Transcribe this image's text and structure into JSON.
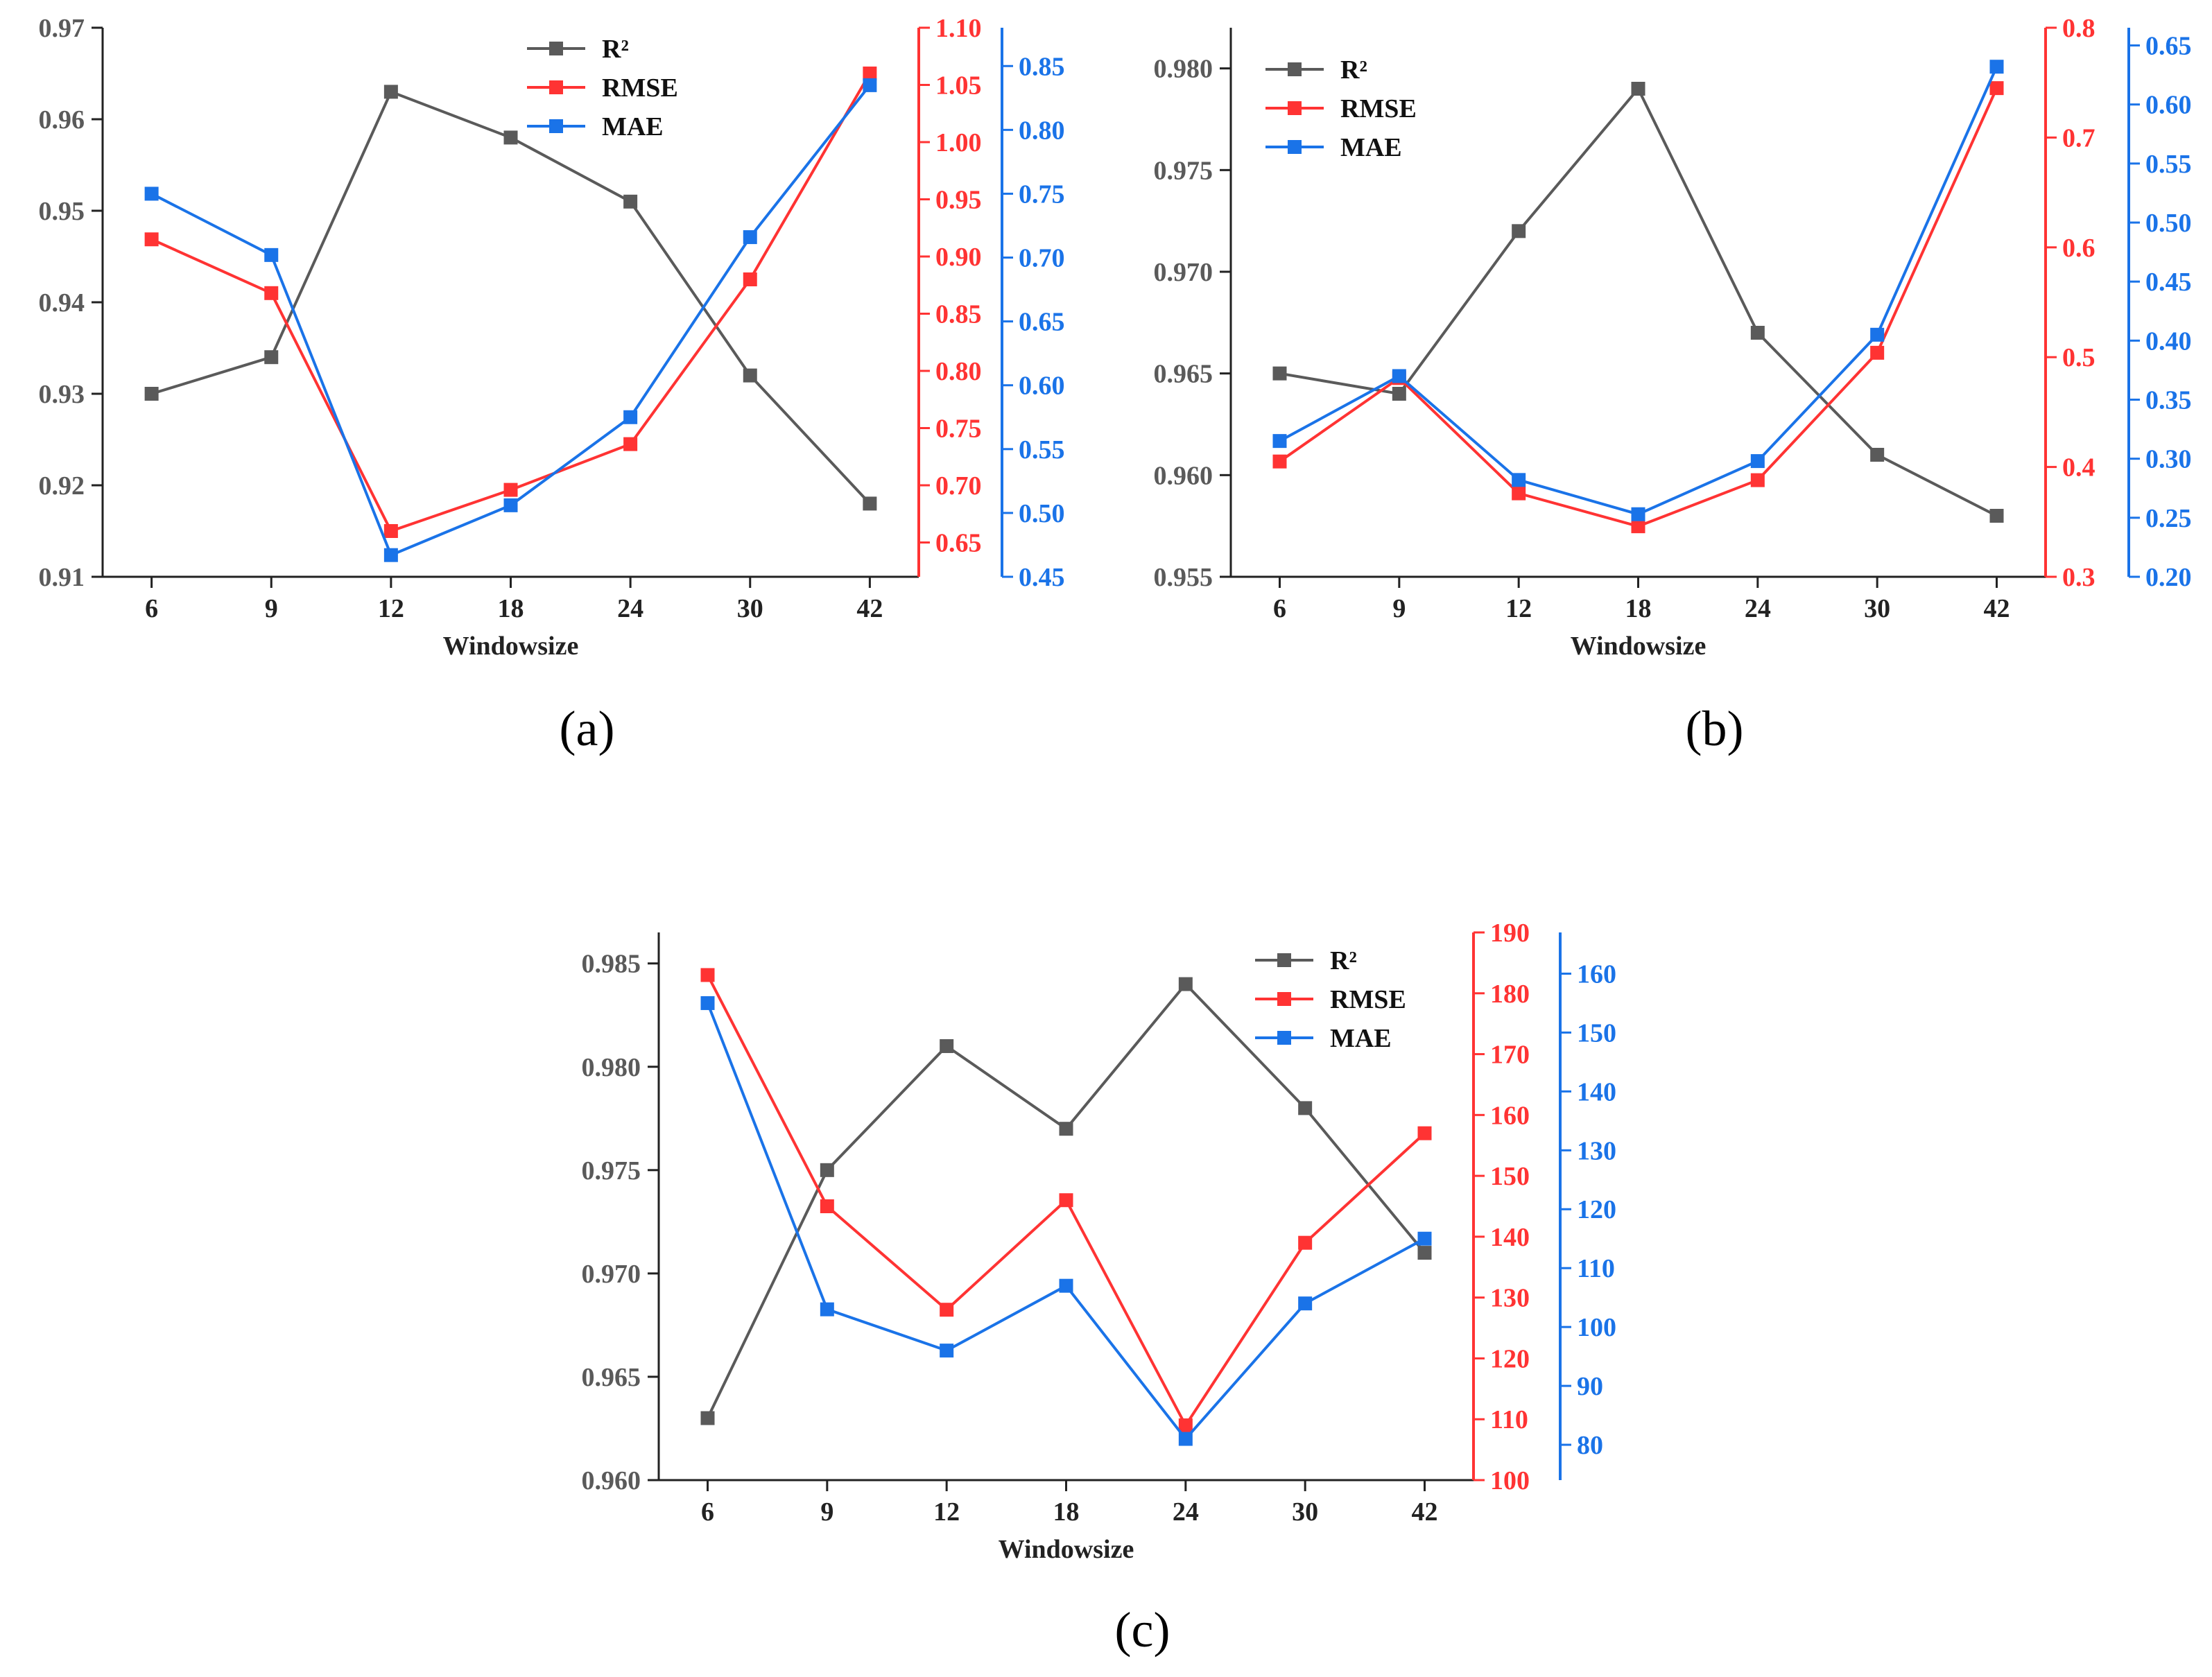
{
  "colors": {
    "r2": "#5a5a5a",
    "rmse": "#ff3333",
    "mae": "#1a73e8",
    "axis": "#222222"
  },
  "legend_labels": {
    "r2": "R²",
    "rmse": "RMSE",
    "mae": "MAE"
  },
  "chart_data": [
    {
      "type": "line",
      "panel_label": "(a)",
      "xlabel": "Windowsize",
      "categories": [
        "6",
        "9",
        "12",
        "18",
        "24",
        "30",
        "42"
      ],
      "series": [
        {
          "name": "R²",
          "axis": "left",
          "values": [
            0.93,
            0.934,
            0.963,
            0.958,
            0.951,
            0.932,
            0.918
          ]
        },
        {
          "name": "RMSE",
          "axis": "right1",
          "values": [
            0.915,
            0.868,
            0.66,
            0.696,
            0.736,
            0.88,
            1.06
          ]
        },
        {
          "name": "MAE",
          "axis": "right2",
          "values": [
            0.75,
            0.702,
            0.467,
            0.506,
            0.575,
            0.716,
            0.835
          ]
        }
      ],
      "axes": {
        "left": {
          "min": 0.91,
          "max": 0.97,
          "ticks": [
            "0.91",
            "0.92",
            "0.93",
            "0.94",
            "0.95",
            "0.96",
            "0.97"
          ]
        },
        "right1": {
          "min": 0.62,
          "max": 1.1,
          "ticks": [
            "0.65",
            "0.70",
            "0.75",
            "0.80",
            "0.85",
            "0.90",
            "0.95",
            "1.00",
            "1.05",
            "1.10"
          ]
        },
        "right2": {
          "min": 0.45,
          "max": 0.88,
          "ticks": [
            "0.45",
            "0.50",
            "0.55",
            "0.60",
            "0.65",
            "0.70",
            "0.75",
            "0.80",
            "0.85"
          ]
        }
      }
    },
    {
      "type": "line",
      "panel_label": "(b)",
      "xlabel": "Windowsize",
      "categories": [
        "6",
        "9",
        "12",
        "18",
        "24",
        "30",
        "42"
      ],
      "series": [
        {
          "name": "R²",
          "axis": "left",
          "values": [
            0.965,
            0.964,
            0.972,
            0.979,
            0.967,
            0.961,
            0.958
          ]
        },
        {
          "name": "RMSE",
          "axis": "right1",
          "values": [
            0.405,
            0.481,
            0.376,
            0.346,
            0.388,
            0.504,
            0.745
          ]
        },
        {
          "name": "MAE",
          "axis": "right2",
          "values": [
            0.315,
            0.37,
            0.282,
            0.253,
            0.298,
            0.405,
            0.632
          ]
        }
      ],
      "axes": {
        "left": {
          "min": 0.955,
          "max": 0.982,
          "ticks": [
            "0.955",
            "0.960",
            "0.965",
            "0.970",
            "0.975",
            "0.980"
          ]
        },
        "right1": {
          "min": 0.3,
          "max": 0.8,
          "ticks": [
            "0.3",
            "0.4",
            "0.5",
            "0.6",
            "0.7",
            "0.8"
          ]
        },
        "right2": {
          "min": 0.2,
          "max": 0.665,
          "ticks": [
            "0.20",
            "0.25",
            "0.30",
            "0.35",
            "0.40",
            "0.45",
            "0.50",
            "0.55",
            "0.60",
            "0.65"
          ]
        }
      }
    },
    {
      "type": "line",
      "panel_label": "(c)",
      "xlabel": "Windowsize",
      "categories": [
        "6",
        "9",
        "12",
        "18",
        "24",
        "30",
        "42"
      ],
      "series": [
        {
          "name": "R²",
          "axis": "left",
          "values": [
            0.963,
            0.975,
            0.981,
            0.977,
            0.984,
            0.978,
            0.971
          ]
        },
        {
          "name": "RMSE",
          "axis": "right1",
          "values": [
            183,
            145,
            128,
            146,
            109,
            139,
            157
          ]
        },
        {
          "name": "MAE",
          "axis": "right2",
          "values": [
            155,
            103,
            96,
            107,
            81,
            104,
            115
          ]
        }
      ],
      "axes": {
        "left": {
          "min": 0.96,
          "max": 0.9865,
          "ticks": [
            "0.960",
            "0.965",
            "0.970",
            "0.975",
            "0.980",
            "0.985"
          ]
        },
        "right1": {
          "min": 100,
          "max": 190,
          "ticks": [
            "100",
            "110",
            "120",
            "130",
            "140",
            "150",
            "160",
            "170",
            "180",
            "190"
          ]
        },
        "right2": {
          "min": 74,
          "max": 167,
          "ticks": [
            "80",
            "90",
            "100",
            "110",
            "120",
            "130",
            "140",
            "150",
            "160"
          ]
        }
      }
    }
  ]
}
